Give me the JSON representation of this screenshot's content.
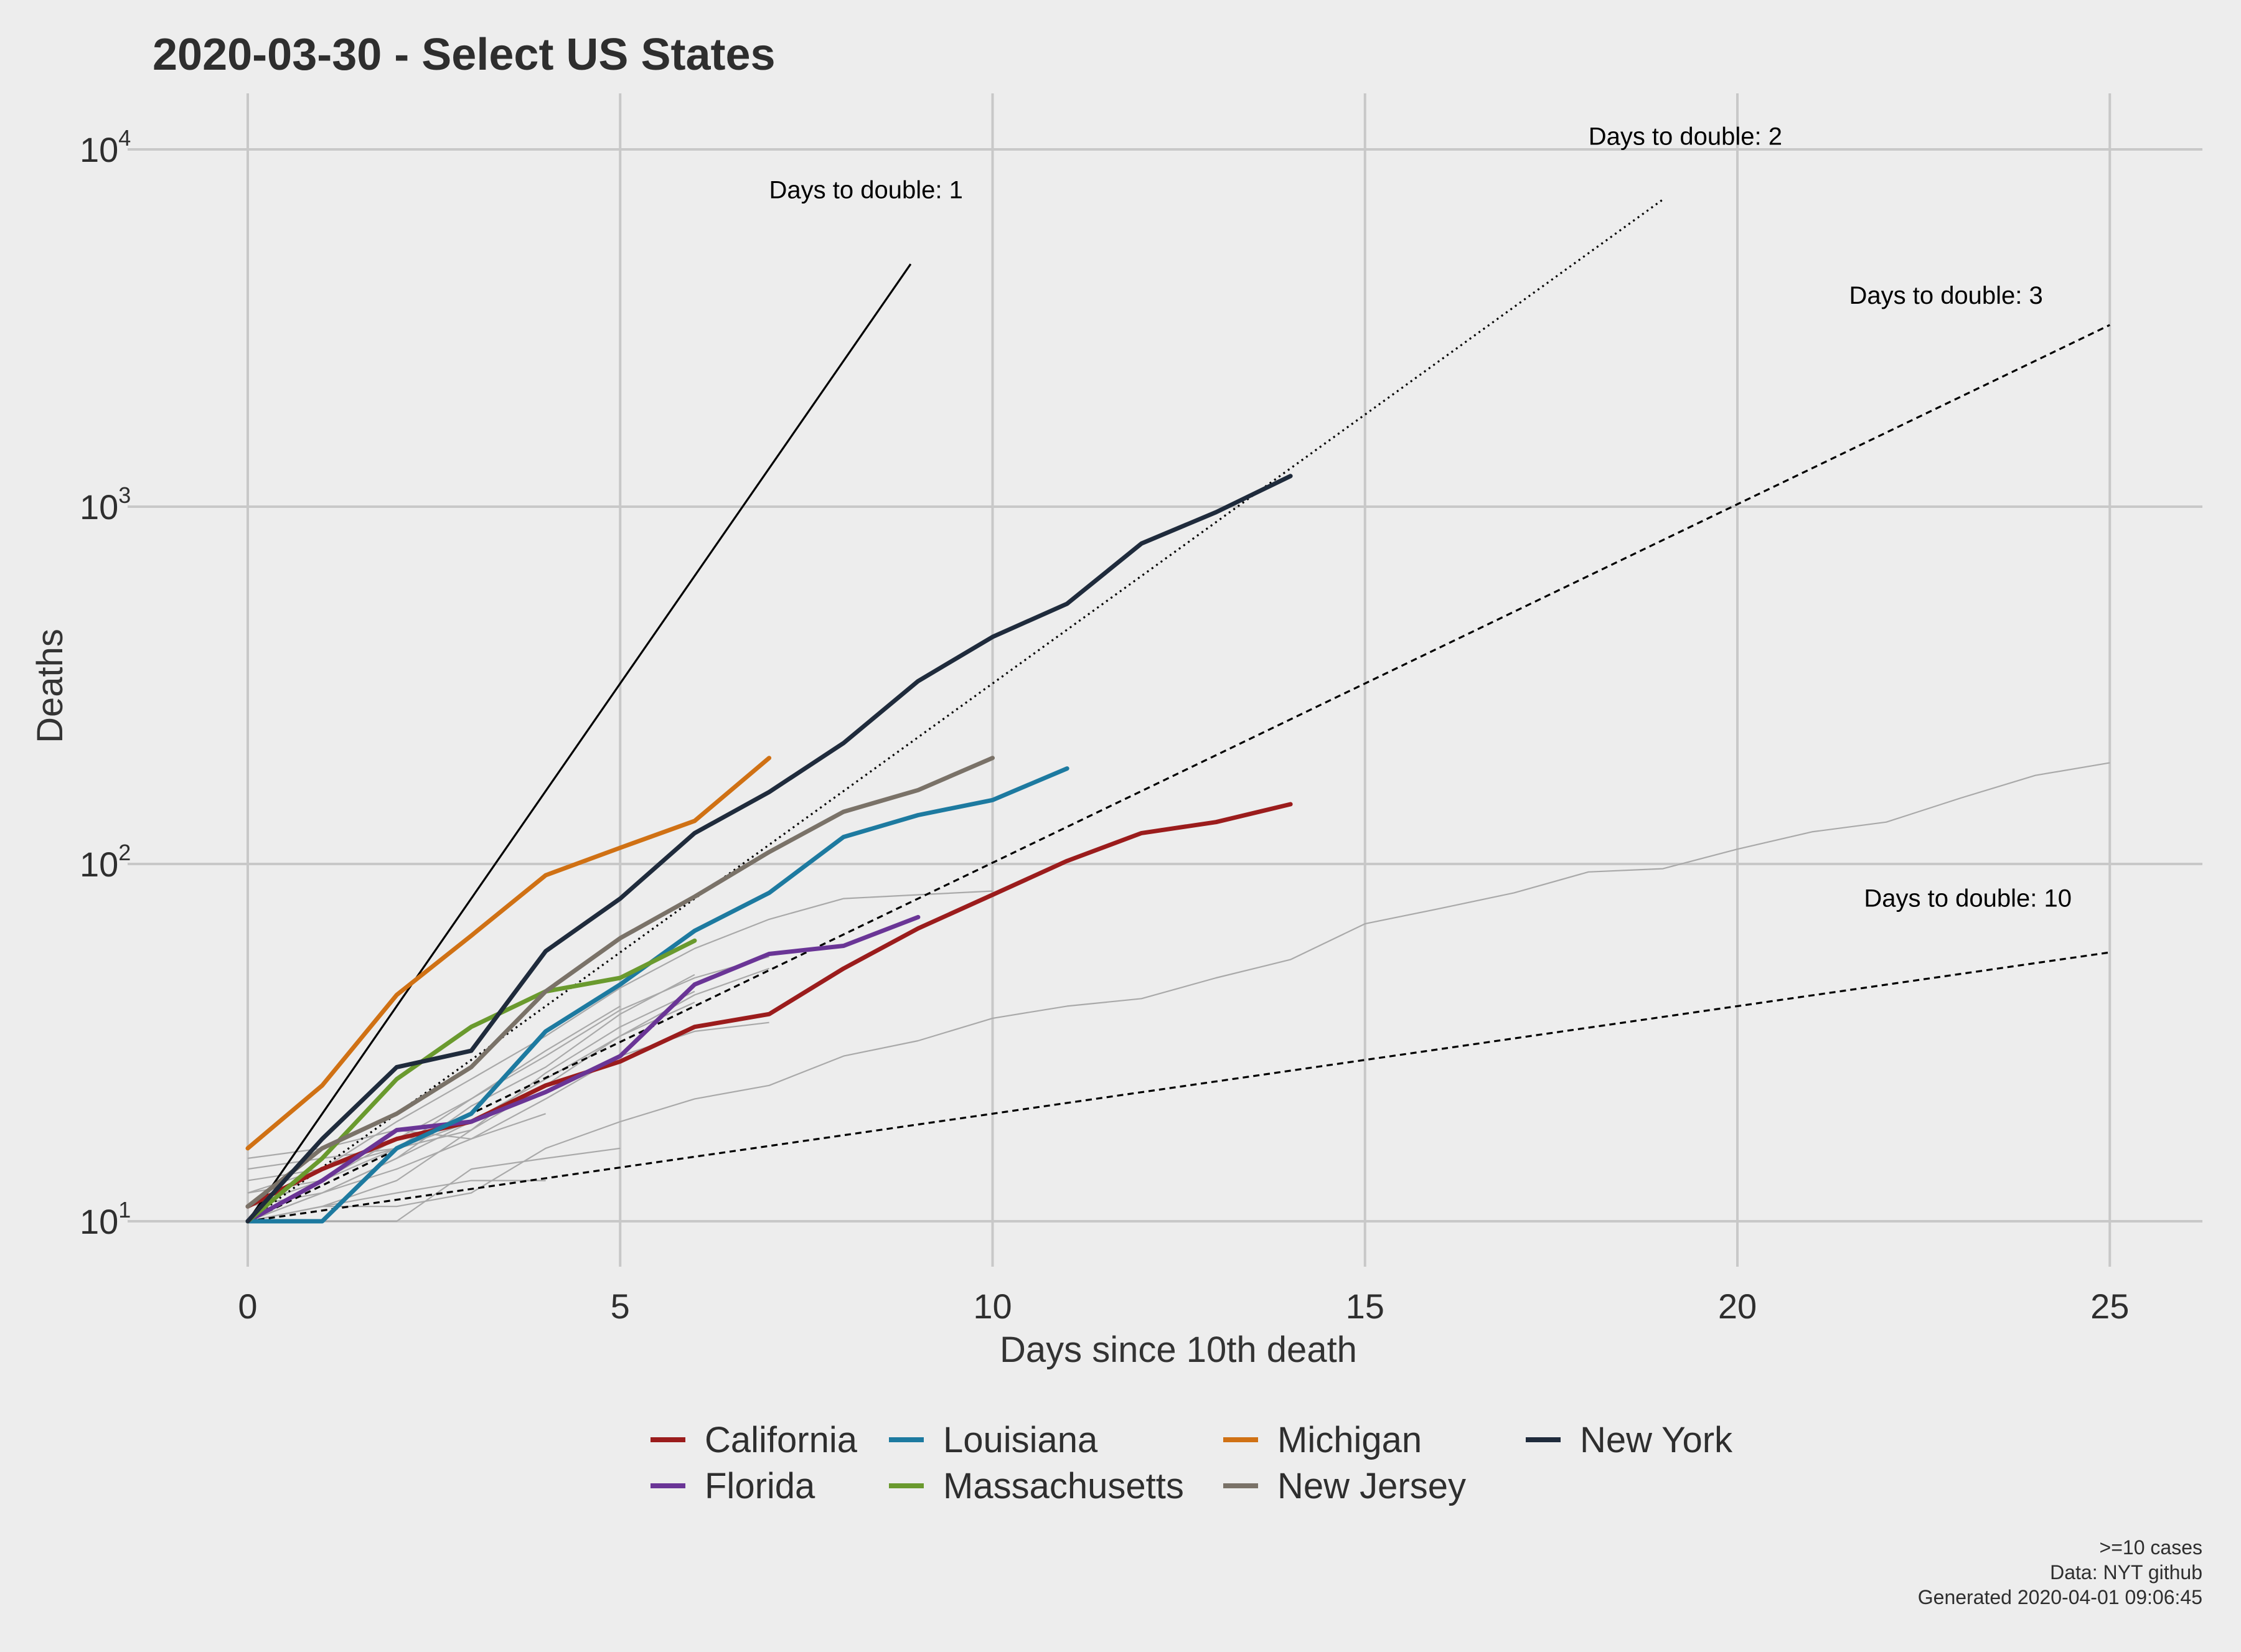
{
  "chart_data": {
    "type": "line",
    "title": "2020-03-30  - Select US States",
    "xlabel": "Days since 10th death",
    "ylabel": "Deaths",
    "x_scale": "linear",
    "y_scale": "log",
    "xlim": [
      -1.2,
      26.3
    ],
    "ylim": [
      8.2,
      14000
    ],
    "x_ticks": [
      0,
      5,
      10,
      15,
      20,
      25
    ],
    "y_ticks": [
      {
        "value": 10,
        "base": "10",
        "exp": "1"
      },
      {
        "value": 100,
        "base": "10",
        "exp": "2"
      },
      {
        "value": 1000,
        "base": "10",
        "exp": "3"
      },
      {
        "value": 10000,
        "base": "10",
        "exp": "4"
      }
    ],
    "grid": true,
    "legend_position": "bottom",
    "series": [
      {
        "name": "California",
        "color": "#9b1c1c",
        "x": [
          0,
          1,
          2,
          3,
          4,
          5,
          6,
          7,
          8,
          9,
          10,
          11,
          12,
          13,
          14
        ],
        "y": [
          11,
          14,
          17,
          19,
          24,
          28,
          35,
          38,
          51,
          66,
          82,
          102,
          122,
          131,
          147
        ]
      },
      {
        "name": "Florida",
        "color": "#6a3596",
        "x": [
          0,
          1,
          2,
          3,
          4,
          5,
          6,
          7,
          8,
          9
        ],
        "y": [
          10,
          13,
          18,
          19,
          23,
          29,
          46,
          56,
          59,
          71
        ]
      },
      {
        "name": "Louisiana",
        "color": "#1d7aa0",
        "x": [
          0,
          1,
          2,
          3,
          4,
          5,
          6,
          7,
          8,
          9,
          10,
          11
        ],
        "y": [
          10,
          10,
          16,
          20,
          34,
          46,
          65,
          83,
          119,
          137,
          151,
          185
        ]
      },
      {
        "name": "Massachusetts",
        "color": "#6a9a2e",
        "x": [
          0,
          1,
          2,
          3,
          4,
          5,
          6
        ],
        "y": [
          10,
          15,
          25,
          35,
          44,
          48,
          61
        ]
      },
      {
        "name": "Michigan",
        "color": "#d07114",
        "x": [
          0,
          1,
          2,
          3,
          4,
          5,
          6,
          7
        ],
        "y": [
          16,
          24,
          43,
          63,
          93,
          111,
          132,
          198
        ]
      },
      {
        "name": "New Jersey",
        "color": "#7a7268",
        "x": [
          0,
          1,
          2,
          3,
          4,
          5,
          6,
          7,
          8,
          9,
          10
        ],
        "y": [
          11,
          16,
          20,
          27,
          44,
          62,
          81,
          108,
          140,
          161,
          198
        ]
      },
      {
        "name": "New York",
        "color": "#1f2b3c",
        "x": [
          0,
          1,
          2,
          3,
          4,
          5,
          6,
          7,
          8,
          9,
          10,
          11,
          12,
          13,
          14
        ],
        "y": [
          10,
          17,
          27,
          30,
          57,
          80,
          122,
          159,
          218,
          325,
          432,
          535,
          789,
          965,
          1218
        ]
      }
    ],
    "background_series": [
      {
        "x": [
          0,
          1,
          2,
          3,
          4,
          5,
          6,
          7,
          8,
          9,
          10,
          11,
          12,
          13,
          14,
          15,
          16,
          17,
          18,
          19,
          20,
          21,
          22,
          23,
          24,
          25
        ],
        "y": [
          10,
          11,
          11,
          12,
          16,
          19,
          22,
          24,
          29,
          32,
          37,
          40,
          42,
          48,
          54,
          68,
          75,
          83,
          95,
          97,
          110,
          123,
          131,
          153,
          177,
          192
        ]
      },
      {
        "x": [
          0,
          1,
          2,
          3,
          4,
          5,
          6,
          7
        ],
        "y": [
          11,
          13,
          16,
          22,
          29,
          39,
          48,
          55
        ]
      },
      {
        "x": [
          0,
          1,
          2,
          3,
          4,
          5,
          6,
          7,
          8,
          9,
          10
        ],
        "y": [
          12,
          14,
          19,
          25,
          33,
          45,
          58,
          70,
          80,
          82,
          84
        ]
      },
      {
        "x": [
          0,
          1,
          2,
          3,
          4,
          5,
          6
        ],
        "y": [
          13,
          14,
          16,
          18,
          24,
          33,
          41
        ]
      },
      {
        "x": [
          0,
          1,
          2,
          3,
          4,
          5,
          6,
          7
        ],
        "y": [
          10,
          12,
          14,
          17,
          22,
          29,
          34,
          36
        ]
      },
      {
        "x": [
          0,
          1,
          2,
          3,
          4,
          5
        ],
        "y": [
          10,
          10,
          10,
          14,
          15,
          16
        ]
      },
      {
        "x": [
          0,
          1,
          2,
          3,
          4
        ],
        "y": [
          15,
          16,
          18,
          17,
          20
        ]
      },
      {
        "x": [
          0,
          1,
          2,
          3,
          4,
          5
        ],
        "y": [
          12,
          13,
          17,
          22,
          30,
          40
        ]
      },
      {
        "x": [
          0,
          1,
          2,
          3,
          4,
          5,
          6
        ],
        "y": [
          11,
          12,
          15,
          21,
          27,
          38,
          49
        ]
      },
      {
        "x": [
          0,
          1,
          2,
          3,
          4,
          5,
          6
        ],
        "y": [
          10,
          11,
          13,
          18,
          26,
          35,
          44
        ]
      },
      {
        "x": [
          0,
          1,
          2,
          3,
          4,
          5,
          6,
          7
        ],
        "y": [
          10,
          12,
          15,
          19,
          25,
          33,
          43,
          51
        ]
      },
      {
        "x": [
          0,
          1,
          2,
          3
        ],
        "y": [
          14,
          15,
          16,
          19
        ]
      },
      {
        "x": [
          0,
          1,
          2,
          3,
          4
        ],
        "y": [
          10,
          11,
          12,
          13,
          13
        ]
      }
    ],
    "doubling_lines": [
      {
        "label": "Days to double: 1",
        "days": 1,
        "x_end": 8.9,
        "label_x": 7.0,
        "label_y": 7300,
        "dash": "none"
      },
      {
        "label": "Days to double: 2",
        "days": 2,
        "x_end": 19.0,
        "label_x": 18.0,
        "label_y": 10300,
        "dash": "3,6"
      },
      {
        "label": "Days to double: 3",
        "days": 3,
        "x_end": 25.0,
        "label_x": 21.5,
        "label_y": 3700,
        "dash": "10,7"
      },
      {
        "label": "Days to double: 10",
        "days": 10,
        "x_end": 25.0,
        "label_x": 21.7,
        "label_y": 76,
        "dash": "10,7"
      }
    ],
    "caption": [
      ">=10 cases",
      "Data: NYT github",
      "Generated 2020-04-01 09:06:45"
    ]
  }
}
